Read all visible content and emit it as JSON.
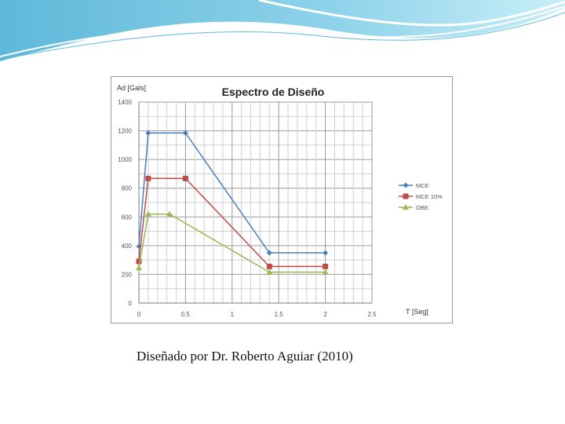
{
  "caption": "Diseñado por Dr. Roberto Aguiar (2010)",
  "chart_data": {
    "type": "line",
    "title": "Espectro de Diseño",
    "xlabel": "T [Seg]",
    "ylabel": "Ad [Gals]",
    "xlim": [
      0,
      2.5
    ],
    "ylim": [
      0,
      1400
    ],
    "xticks": [
      0,
      0.5,
      1,
      1.5,
      2,
      2.5
    ],
    "xtick_labels": [
      "0",
      "0.5",
      "1",
      "1.5",
      "2",
      "2.5"
    ],
    "yticks": [
      0,
      200,
      400,
      600,
      800,
      1000,
      1200,
      1400
    ],
    "ytick_labels": [
      "0",
      "200",
      "400",
      "600",
      "800",
      "1000",
      "1200",
      "1400"
    ],
    "grid": true,
    "legend": "right",
    "series": [
      {
        "name": "MCE",
        "color": "#4a7ebb",
        "marker": "diamond",
        "x": [
          0,
          0.1,
          0.5,
          1.4,
          2.0
        ],
        "y": [
          395,
          1185,
          1185,
          350,
          350
        ]
      },
      {
        "name": "MCE 10%",
        "color": "#be4b48",
        "marker": "square",
        "x": [
          0,
          0.1,
          0.5,
          1.4,
          2.0
        ],
        "y": [
          290,
          868,
          868,
          255,
          255
        ]
      },
      {
        "name": "OBE",
        "color": "#98b954",
        "marker": "triangle",
        "x": [
          0,
          0.1,
          0.33,
          1.4,
          2.0
        ],
        "y": [
          245,
          620,
          620,
          215,
          215
        ]
      }
    ]
  }
}
